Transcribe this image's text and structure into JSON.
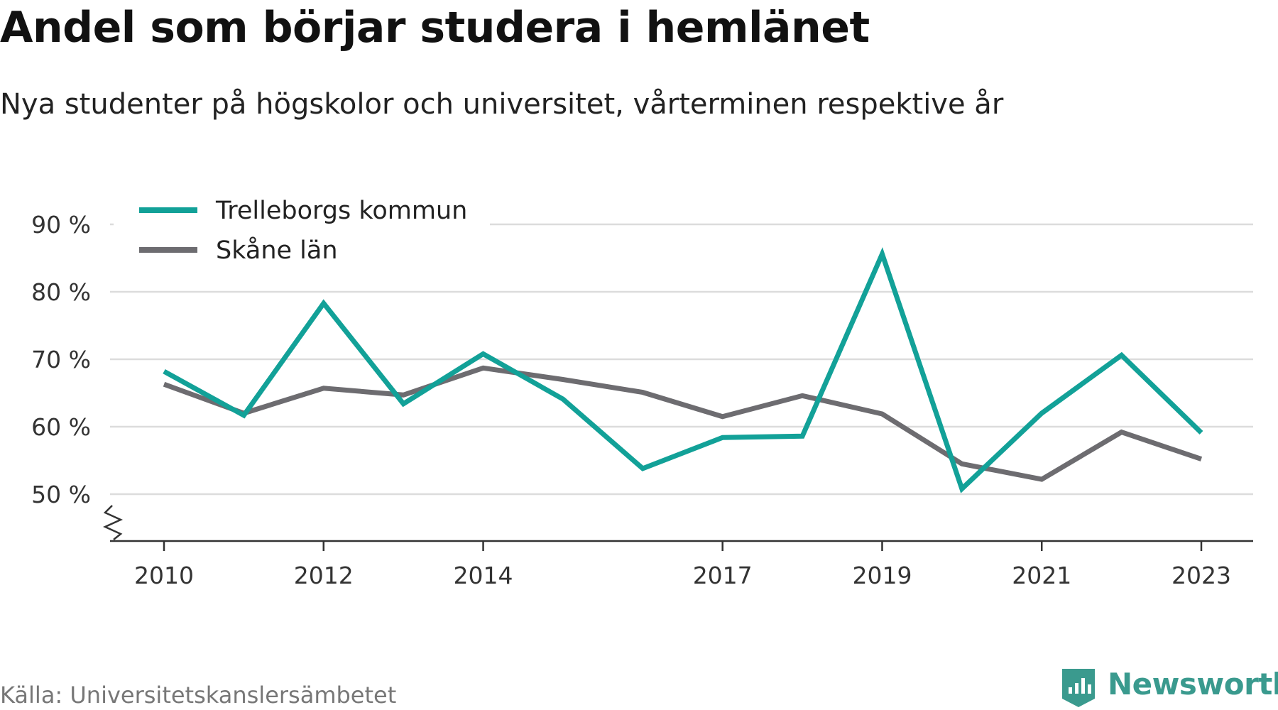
{
  "header": {
    "title": "Andel som börjar studera i hemlänet",
    "subtitle": "Nya studenter på högskolor och universitet, vårterminen respektive år"
  },
  "footer": {
    "source": "Källa: Universitetskanslersämbetet",
    "brand": "Newsworthy"
  },
  "colors": {
    "trelleborg": "#12a198",
    "skane": "#6d6c70",
    "grid": "#dcdcdc",
    "axis": "#333333",
    "brand": "#3a9a8e"
  },
  "chart_data": {
    "type": "line",
    "x": [
      2010,
      2011,
      2012,
      2013,
      2014,
      2015,
      2016,
      2017,
      2018,
      2019,
      2020,
      2021,
      2022,
      2023
    ],
    "x_ticks": [
      2010,
      2012,
      2014,
      2017,
      2019,
      2021,
      2023
    ],
    "x_tick_labels": [
      "2010",
      "2012",
      "2014",
      "2017",
      "2019",
      "2021",
      "2023"
    ],
    "y_ticks": [
      50,
      60,
      70,
      80,
      90
    ],
    "y_tick_labels": [
      "50 %",
      "60 %",
      "70 %",
      "80 %",
      "90 %"
    ],
    "ylim": [
      43,
      90
    ],
    "y_axis_break": true,
    "grid": "horizontal",
    "legend_position": "top-left",
    "series": [
      {
        "name": "Trelleborgs kommun",
        "color": "#12a198",
        "values": [
          68.2,
          61.7,
          78.3,
          63.4,
          70.8,
          64.1,
          53.8,
          58.4,
          58.6,
          85.6,
          50.8,
          62.0,
          70.6,
          59.1
        ]
      },
      {
        "name": "Skåne län",
        "color": "#6d6c70",
        "values": [
          66.3,
          62.0,
          65.7,
          64.7,
          68.7,
          67.0,
          65.1,
          61.5,
          64.6,
          61.9,
          54.5,
          52.2,
          59.2,
          55.2
        ]
      }
    ]
  }
}
